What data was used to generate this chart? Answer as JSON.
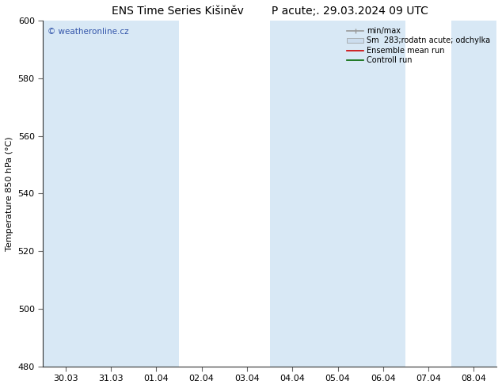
{
  "title": "ENS Time Series Kišiněv        P acute;. 29.03.2024 09 UTC",
  "ylabel": "Temperature 850 hPa (°C)",
  "ylim": [
    480,
    600
  ],
  "yticks": [
    480,
    500,
    520,
    540,
    560,
    580,
    600
  ],
  "xlabels": [
    "30.03",
    "31.03",
    "01.04",
    "02.04",
    "03.04",
    "04.04",
    "05.04",
    "06.04",
    "07.04",
    "08.04"
  ],
  "background_color": "#ffffff",
  "plot_bg_color": "#ffffff",
  "band_color": "#d8e8f5",
  "watermark": "© weatheronline.cz",
  "watermark_color": "#3355aa",
  "fig_width": 6.34,
  "fig_height": 4.9,
  "dpi": 100,
  "title_fontsize": 10,
  "axis_label_fontsize": 8,
  "tick_fontsize": 8,
  "shaded_bands_x": [
    0,
    1,
    2,
    5,
    6,
    7,
    9
  ],
  "minmax_color": "#999999",
  "sm_color": "#ccddee",
  "ensemble_color": "#cc0000",
  "control_color": "#006600"
}
